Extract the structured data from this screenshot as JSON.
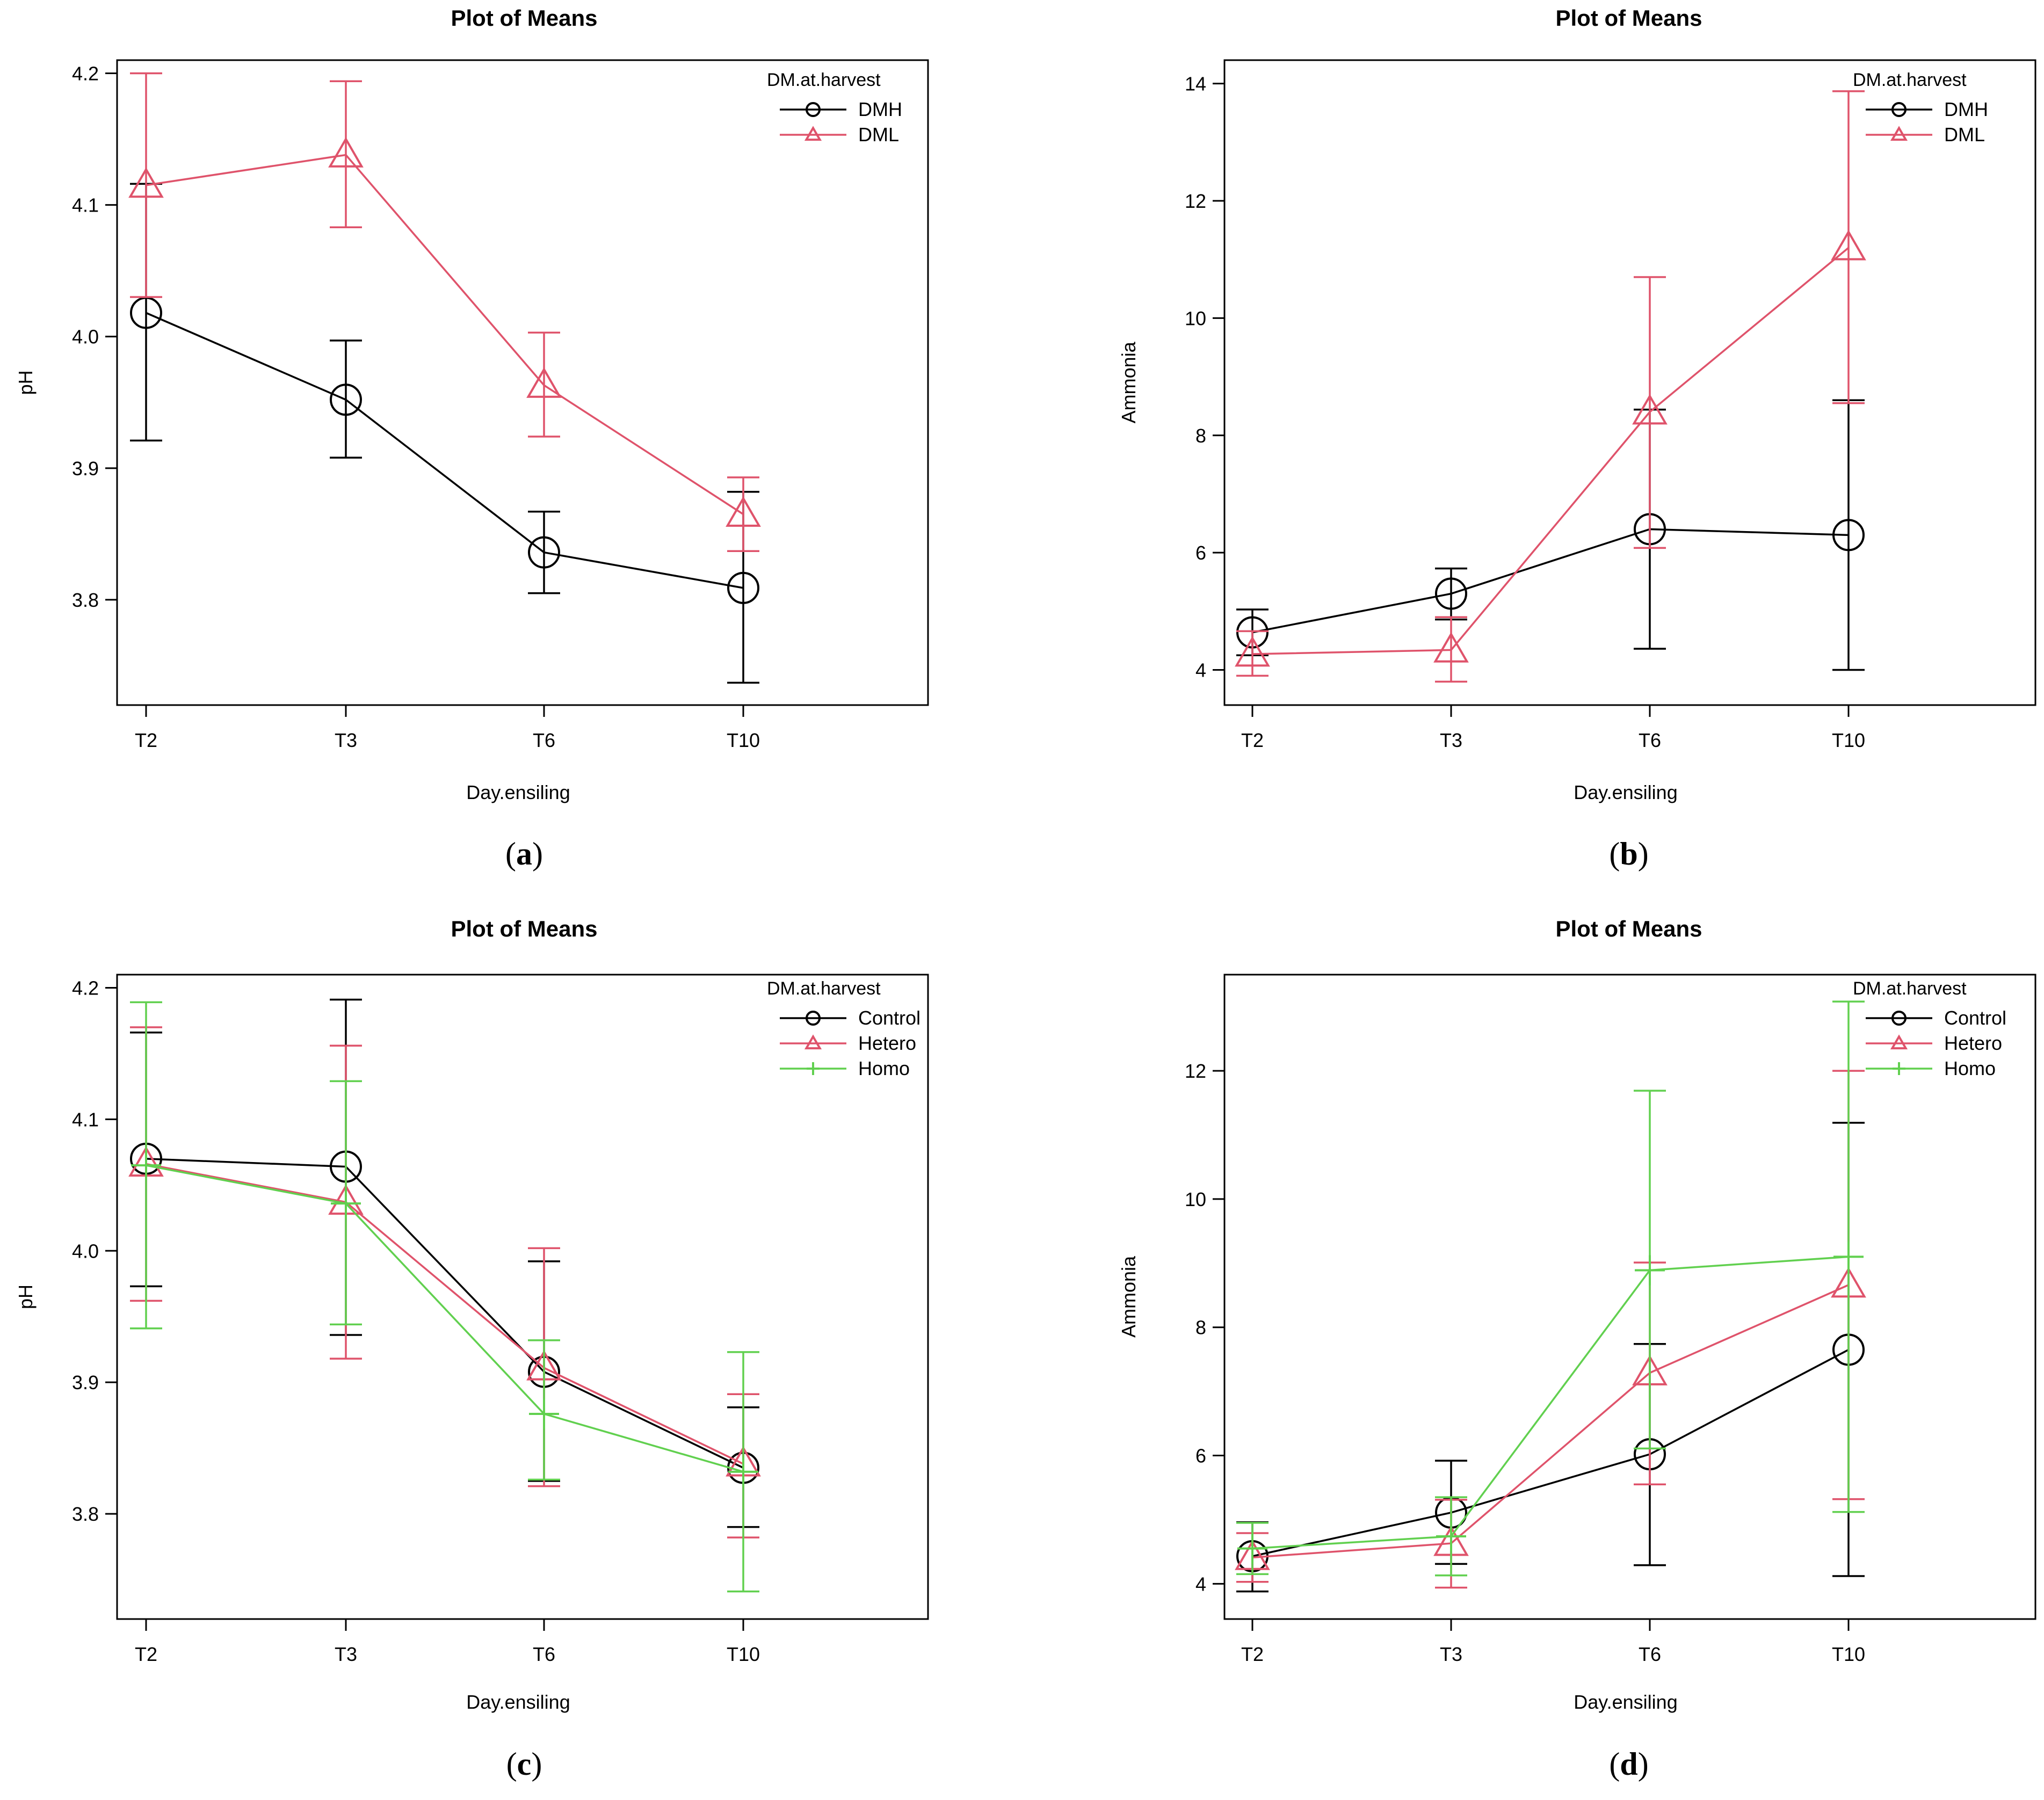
{
  "colors": {
    "DMH": "#000000",
    "DML": "#DF536B",
    "Control": "#000000",
    "Hetero": "#DF536B",
    "Homo": "#61D04F"
  },
  "chart_data": [
    {
      "id": "a",
      "type": "line",
      "title": "Plot of Means",
      "xlabel": "Day.ensiling",
      "ylabel": "pH",
      "categories": [
        "T2",
        "T3",
        "T6",
        "T10"
      ],
      "ylim": [
        3.72,
        4.21
      ],
      "yticks": [
        "3.8",
        "3.9",
        "4.0",
        "4.1",
        "4.2"
      ],
      "legend_title": "DM.at.harvest",
      "series": [
        {
          "name": "DMH",
          "marker": "circle",
          "values": [
            4.018,
            3.952,
            3.836,
            3.809
          ],
          "lower": [
            3.921,
            3.908,
            3.805,
            3.737
          ],
          "upper": [
            4.116,
            3.997,
            3.867,
            3.882
          ]
        },
        {
          "name": "DML",
          "marker": "triangle",
          "values": [
            4.115,
            4.138,
            3.963,
            3.865
          ],
          "lower": [
            4.03,
            4.083,
            3.924,
            3.837
          ],
          "upper": [
            4.2,
            4.194,
            4.003,
            3.893
          ]
        }
      ],
      "panel_label": "a"
    },
    {
      "id": "b",
      "type": "line",
      "title": "Plot of Means",
      "xlabel": "Day.ensiling",
      "ylabel": "Ammonia",
      "categories": [
        "T2",
        "T3",
        "T6",
        "T10"
      ],
      "ylim": [
        3.4,
        14.4
      ],
      "yticks": [
        "4",
        "6",
        "8",
        "10",
        "12",
        "14"
      ],
      "legend_title": "DM.at.harvest",
      "series": [
        {
          "name": "DMH",
          "marker": "circle",
          "values": [
            4.64,
            5.3,
            6.4,
            6.3
          ],
          "lower": [
            4.25,
            4.86,
            4.36,
            4.0
          ],
          "upper": [
            5.03,
            5.73,
            8.44,
            8.6
          ]
        },
        {
          "name": "DML",
          "marker": "triangle",
          "values": [
            4.27,
            4.34,
            8.4,
            11.2
          ],
          "lower": [
            3.9,
            3.8,
            6.08,
            8.55
          ],
          "upper": [
            4.66,
            4.9,
            10.7,
            13.87
          ]
        }
      ],
      "panel_label": "b"
    },
    {
      "id": "c",
      "type": "line",
      "title": "Plot of Means",
      "xlabel": "Day.ensiling",
      "ylabel": "pH",
      "categories": [
        "T2",
        "T3",
        "T6",
        "T10"
      ],
      "ylim": [
        3.72,
        4.21
      ],
      "yticks": [
        "3.8",
        "3.9",
        "4.0",
        "4.1",
        "4.2"
      ],
      "legend_title": "DM.at.harvest",
      "series": [
        {
          "name": "Control",
          "marker": "circle",
          "values": [
            4.07,
            4.064,
            3.908,
            3.835
          ],
          "lower": [
            3.973,
            3.936,
            3.825,
            3.79
          ],
          "upper": [
            4.166,
            4.191,
            3.992,
            3.881
          ]
        },
        {
          "name": "Hetero",
          "marker": "triangle",
          "values": [
            4.066,
            4.037,
            3.911,
            3.838
          ],
          "lower": [
            3.962,
            3.918,
            3.821,
            3.782
          ],
          "upper": [
            4.17,
            4.156,
            4.002,
            3.891
          ]
        },
        {
          "name": "Homo",
          "marker": "plus",
          "values": [
            4.065,
            4.036,
            3.876,
            3.832
          ],
          "lower": [
            3.941,
            3.944,
            3.826,
            3.741
          ],
          "upper": [
            4.189,
            4.129,
            3.932,
            3.923
          ]
        }
      ],
      "panel_label": "c"
    },
    {
      "id": "d",
      "type": "line",
      "title": "Plot of Means",
      "xlabel": "Day.ensiling",
      "ylabel": "Ammonia",
      "categories": [
        "T2",
        "T3",
        "T6",
        "T10"
      ],
      "ylim": [
        3.45,
        13.5
      ],
      "yticks": [
        "4",
        "6",
        "8",
        "10",
        "12"
      ],
      "legend_title": "DM.at.harvest",
      "series": [
        {
          "name": "Control",
          "marker": "circle",
          "values": [
            4.43,
            5.11,
            6.02,
            7.65
          ],
          "lower": [
            3.88,
            4.31,
            4.29,
            4.12
          ],
          "upper": [
            4.96,
            5.92,
            7.74,
            11.19
          ]
        },
        {
          "name": "Hetero",
          "marker": "triangle",
          "values": [
            4.41,
            4.63,
            7.29,
            8.66
          ],
          "lower": [
            4.03,
            3.94,
            5.55,
            5.32
          ],
          "upper": [
            4.79,
            5.31,
            9.01,
            12.0
          ]
        },
        {
          "name": "Homo",
          "marker": "plus",
          "values": [
            4.55,
            4.74,
            8.89,
            9.1
          ],
          "lower": [
            4.15,
            4.13,
            6.11,
            5.12
          ],
          "upper": [
            4.95,
            5.35,
            11.69,
            13.08
          ]
        }
      ],
      "panel_label": "d"
    }
  ]
}
